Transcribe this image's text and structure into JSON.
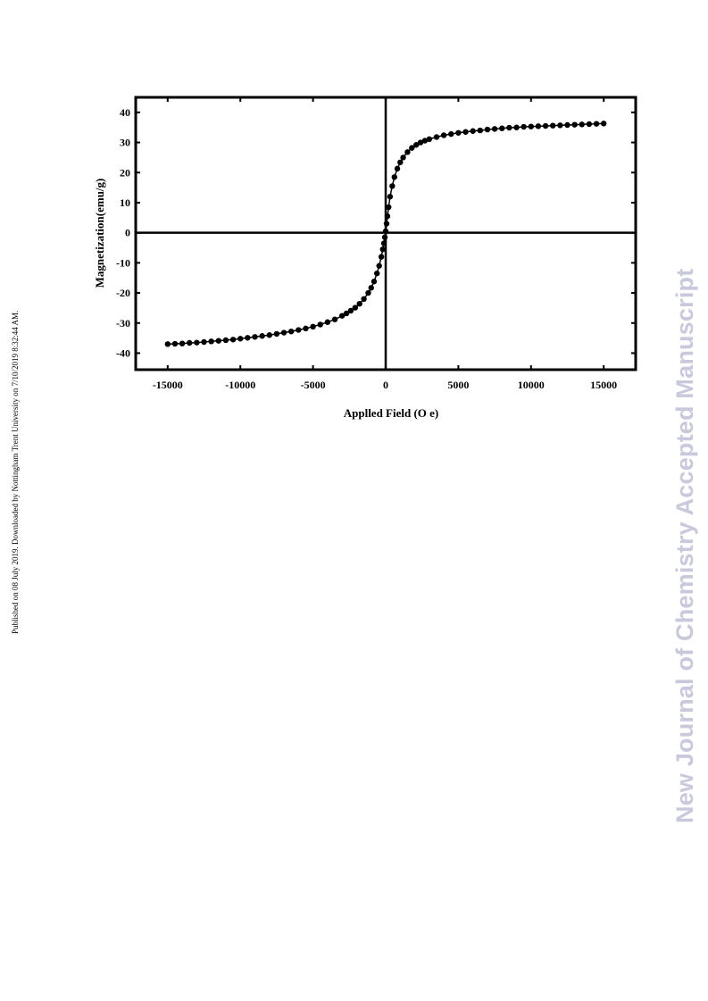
{
  "page": {
    "side_note": "Published on 08 July 2019. Downloaded by Nottingham Trent University on 7/10/2019 8:32:44 AM.",
    "watermark": "New Journal of Chemistry Accepted Manuscript",
    "watermark_color": "#c9c9de"
  },
  "chart_data": {
    "type": "scatter",
    "title": "",
    "xlabel": "Applled Field (O e)",
    "ylabel": "Magnetization(emu/g)",
    "xlim": [
      -17200,
      17200
    ],
    "ylim": [
      -45.5,
      45
    ],
    "xticks": [
      -15000,
      -10000,
      -5000,
      0,
      5000,
      10000,
      15000
    ],
    "yticks": [
      40,
      30,
      20,
      10,
      0,
      -10,
      -20,
      -30,
      -40
    ],
    "grid": false,
    "legend": "none",
    "marker_color": "#000000",
    "series": [
      {
        "x": [
          -15000,
          -14500,
          -14000,
          -13500,
          -13000,
          -12500,
          -12000,
          -11500,
          -11000,
          -10500,
          -10000,
          -9500,
          -9000,
          -8500,
          -8000,
          -7500,
          -7000,
          -6500,
          -6000,
          -5500,
          -5000,
          -4500,
          -4000,
          -3500,
          -3000,
          -2700,
          -2400,
          -2100,
          -1800,
          -1500,
          -1200,
          -1000,
          -800,
          -600,
          -450,
          -300,
          -200,
          -120,
          -60,
          0,
          60,
          120,
          200,
          300,
          450,
          600,
          800,
          1000,
          1200,
          1500,
          1800,
          2100,
          2400,
          2700,
          3000,
          3500,
          4000,
          4500,
          5000,
          5500,
          6000,
          6500,
          7000,
          7500,
          8000,
          8500,
          9000,
          9500,
          10000,
          10500,
          11000,
          11500,
          12000,
          12500,
          13000,
          13500,
          14000,
          14500,
          15000
        ],
        "y": [
          -37.0,
          -36.9,
          -36.8,
          -36.6,
          -36.5,
          -36.3,
          -36.1,
          -35.9,
          -35.7,
          -35.5,
          -35.2,
          -34.9,
          -34.6,
          -34.3,
          -34.0,
          -33.6,
          -33.2,
          -32.8,
          -32.3,
          -31.8,
          -31.2,
          -30.5,
          -29.7,
          -28.8,
          -27.6,
          -26.8,
          -25.9,
          -24.9,
          -23.6,
          -22.0,
          -20.0,
          -18.3,
          -16.2,
          -13.5,
          -11.0,
          -8.0,
          -5.5,
          -3.5,
          -1.5,
          0.5,
          3.0,
          5.5,
          8.5,
          12.0,
          15.5,
          18.5,
          21.3,
          23.4,
          25.0,
          26.8,
          28.2,
          29.2,
          30.0,
          30.6,
          31.1,
          31.8,
          32.4,
          32.8,
          33.2,
          33.5,
          33.8,
          34.0,
          34.3,
          34.5,
          34.7,
          34.9,
          35.0,
          35.2,
          35.3,
          35.4,
          35.5,
          35.6,
          35.7,
          35.8,
          35.9,
          36.0,
          36.1,
          36.2,
          36.3
        ]
      }
    ]
  }
}
